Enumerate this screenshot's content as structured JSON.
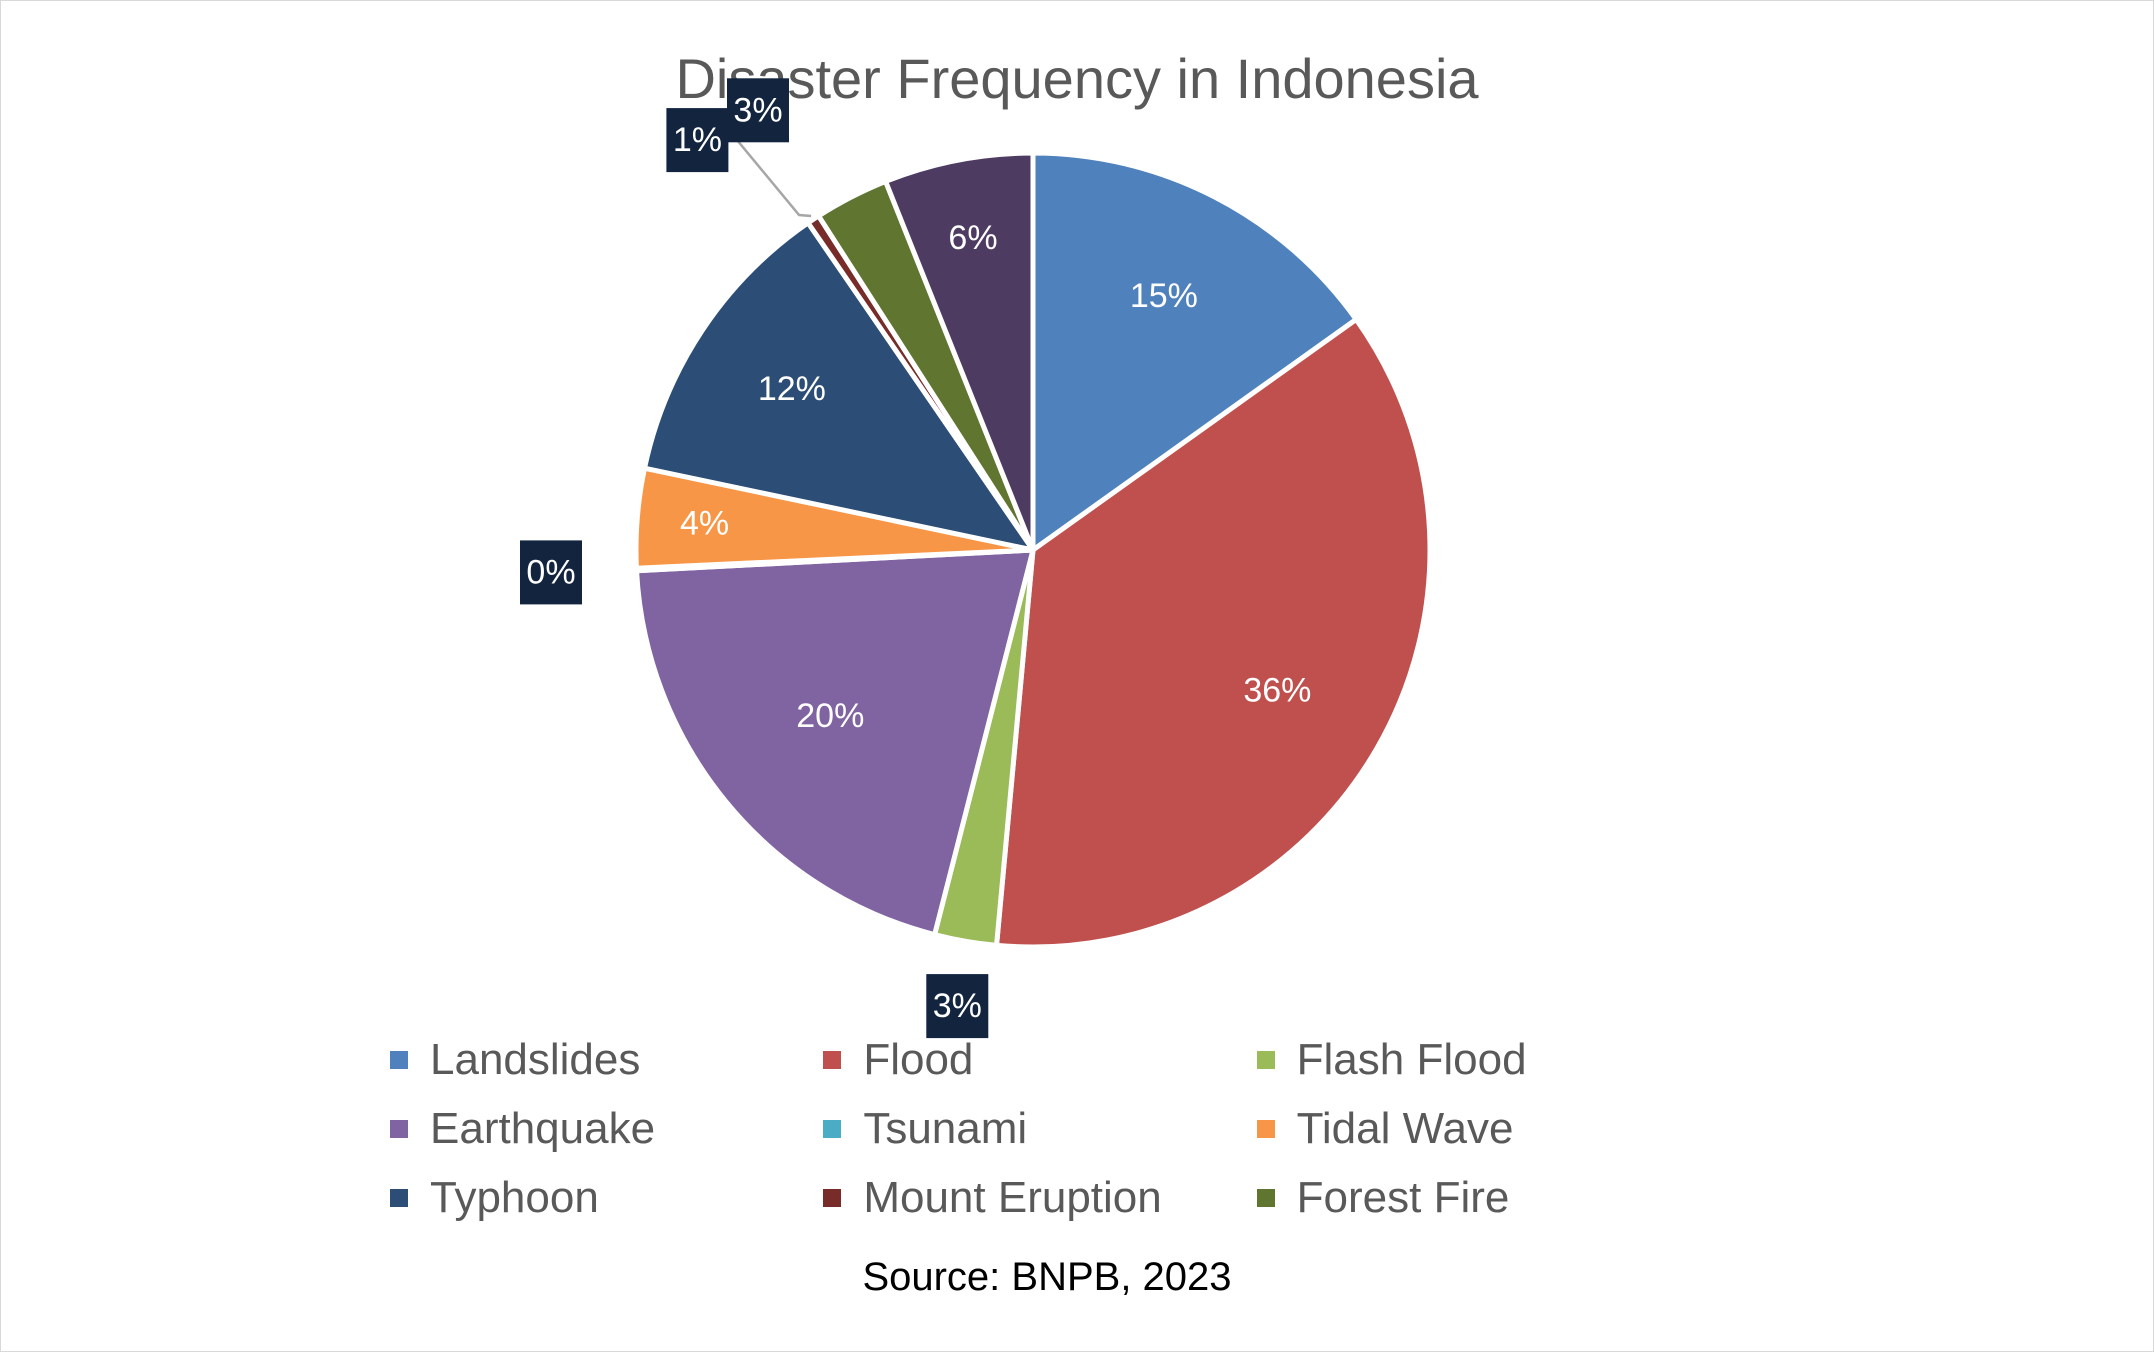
{
  "chart_data": {
    "type": "pie",
    "title": "Disaster Frequency in Indonesia",
    "slices": [
      {
        "name": "Landslides",
        "value": 15,
        "label": "15%",
        "color": "#4F81BD"
      },
      {
        "name": "Flood",
        "value": 36,
        "label": "36%",
        "color": "#C0504D"
      },
      {
        "name": "Flash Flood",
        "value": 2.5,
        "label": "3%",
        "color": "#9BBB59"
      },
      {
        "name": "Earthquake",
        "value": 20,
        "label": "20%",
        "color": "#8064A2"
      },
      {
        "name": "Tsunami",
        "value": 0.1,
        "label": "0%",
        "color": "#4BACC6"
      },
      {
        "name": "Tidal Wave",
        "value": 4,
        "label": "4%",
        "color": "#F79646"
      },
      {
        "name": "Typhoon",
        "value": 12,
        "label": "12%",
        "color": "#2C4D75"
      },
      {
        "name": "Mount Eruption",
        "value": 0.5,
        "label": "1%",
        "color": "#772C2A"
      },
      {
        "name": "Forest Fire",
        "value": 3,
        "label": "3%",
        "color": "#5F7530"
      },
      {
        "name": "",
        "value": 6,
        "label": "6%",
        "color": "#4D3B62"
      }
    ],
    "legend": [
      "Landslides",
      "Flood",
      "Flash Flood",
      "Earthquake",
      "Tsunami",
      "Tidal Wave",
      "Typhoon",
      "Mount Eruption",
      "Forest Fire"
    ],
    "legend_position": "bottom",
    "source": "Source: BNPB, 2023"
  }
}
